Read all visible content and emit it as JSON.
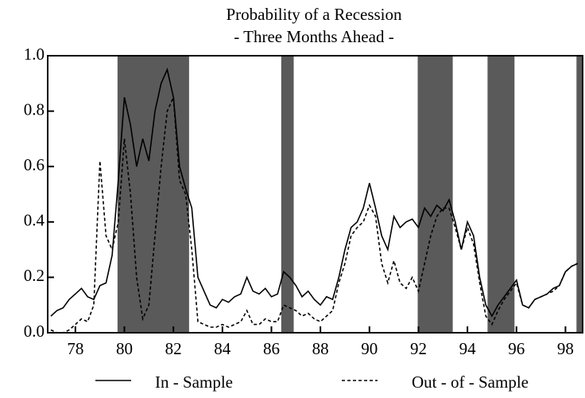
{
  "chart_data": {
    "type": "line",
    "title": "Probability of a Recession",
    "subtitle": "- Three Months  Ahead -",
    "x": [
      77.0,
      77.25,
      77.5,
      77.75,
      78.0,
      78.25,
      78.5,
      78.75,
      79.0,
      79.25,
      79.5,
      79.75,
      80.0,
      80.25,
      80.5,
      80.75,
      81.0,
      81.25,
      81.5,
      81.75,
      82.0,
      82.25,
      82.5,
      82.75,
      83.0,
      83.25,
      83.5,
      83.75,
      84.0,
      84.25,
      84.5,
      84.75,
      85.0,
      85.25,
      85.5,
      85.75,
      86.0,
      86.25,
      86.5,
      86.75,
      87.0,
      87.25,
      87.5,
      87.75,
      88.0,
      88.25,
      88.5,
      88.75,
      89.0,
      89.25,
      89.5,
      89.75,
      90.0,
      90.25,
      90.5,
      90.75,
      91.0,
      91.25,
      91.5,
      91.75,
      92.0,
      92.25,
      92.5,
      92.75,
      93.0,
      93.25,
      93.5,
      93.75,
      94.0,
      94.25,
      94.5,
      94.75,
      95.0,
      95.25,
      95.5,
      95.75,
      96.0,
      96.25,
      96.5,
      96.75,
      97.0,
      97.25,
      97.5,
      97.75,
      98.0,
      98.25,
      98.5
    ],
    "series": [
      {
        "name": "In - Sample",
        "color": "#000000",
        "dash": false,
        "values": [
          0.06,
          0.08,
          0.09,
          0.12,
          0.14,
          0.16,
          0.13,
          0.12,
          0.17,
          0.18,
          0.28,
          0.55,
          0.85,
          0.75,
          0.6,
          0.7,
          0.62,
          0.8,
          0.9,
          0.95,
          0.85,
          0.6,
          0.52,
          0.45,
          0.2,
          0.15,
          0.1,
          0.09,
          0.12,
          0.11,
          0.13,
          0.14,
          0.2,
          0.15,
          0.14,
          0.16,
          0.13,
          0.14,
          0.22,
          0.2,
          0.17,
          0.13,
          0.15,
          0.12,
          0.1,
          0.13,
          0.12,
          0.2,
          0.3,
          0.38,
          0.4,
          0.45,
          0.54,
          0.45,
          0.35,
          0.3,
          0.42,
          0.38,
          0.4,
          0.41,
          0.38,
          0.45,
          0.42,
          0.46,
          0.44,
          0.48,
          0.4,
          0.3,
          0.4,
          0.35,
          0.2,
          0.1,
          0.06,
          0.1,
          0.13,
          0.16,
          0.19,
          0.1,
          0.09,
          0.12,
          0.13,
          0.14,
          0.16,
          0.17,
          0.22,
          0.24,
          0.25
        ]
      },
      {
        "name": "Out - of - Sample",
        "color": "#000000",
        "dash": true,
        "values": [
          0.01,
          0.0,
          0.0,
          0.01,
          0.03,
          0.05,
          0.04,
          0.1,
          0.62,
          0.35,
          0.3,
          0.4,
          0.7,
          0.5,
          0.2,
          0.05,
          0.1,
          0.35,
          0.6,
          0.8,
          0.85,
          0.55,
          0.5,
          0.3,
          0.04,
          0.03,
          0.02,
          0.02,
          0.03,
          0.02,
          0.03,
          0.04,
          0.08,
          0.03,
          0.03,
          0.05,
          0.04,
          0.04,
          0.1,
          0.09,
          0.08,
          0.06,
          0.07,
          0.05,
          0.04,
          0.06,
          0.08,
          0.18,
          0.25,
          0.35,
          0.38,
          0.4,
          0.46,
          0.42,
          0.25,
          0.18,
          0.26,
          0.18,
          0.16,
          0.2,
          0.15,
          0.25,
          0.35,
          0.42,
          0.45,
          0.45,
          0.38,
          0.3,
          0.38,
          0.32,
          0.18,
          0.06,
          0.03,
          0.08,
          0.12,
          0.15,
          0.18,
          0.1,
          0.09,
          0.12,
          0.13,
          0.14,
          0.15,
          0.17,
          0.22,
          0.24,
          0.25
        ]
      }
    ],
    "shading": [
      [
        79.72,
        82.64
      ],
      [
        86.4,
        86.91
      ],
      [
        91.97,
        93.4
      ],
      [
        94.82,
        95.92
      ],
      [
        98.45,
        98.7
      ]
    ],
    "shade_color": "#5a5a5a",
    "xlim": [
      76.87,
      98.7
    ],
    "xticks": [
      78,
      80,
      82,
      84,
      86,
      88,
      90,
      92,
      94,
      96,
      98
    ],
    "ylim": [
      0,
      1
    ],
    "yticks": [
      {
        "value": 0,
        "label": "0.0"
      },
      0.2,
      0.4,
      0.6,
      0.8,
      {
        "value": 1,
        "label": "1.0"
      }
    ]
  }
}
